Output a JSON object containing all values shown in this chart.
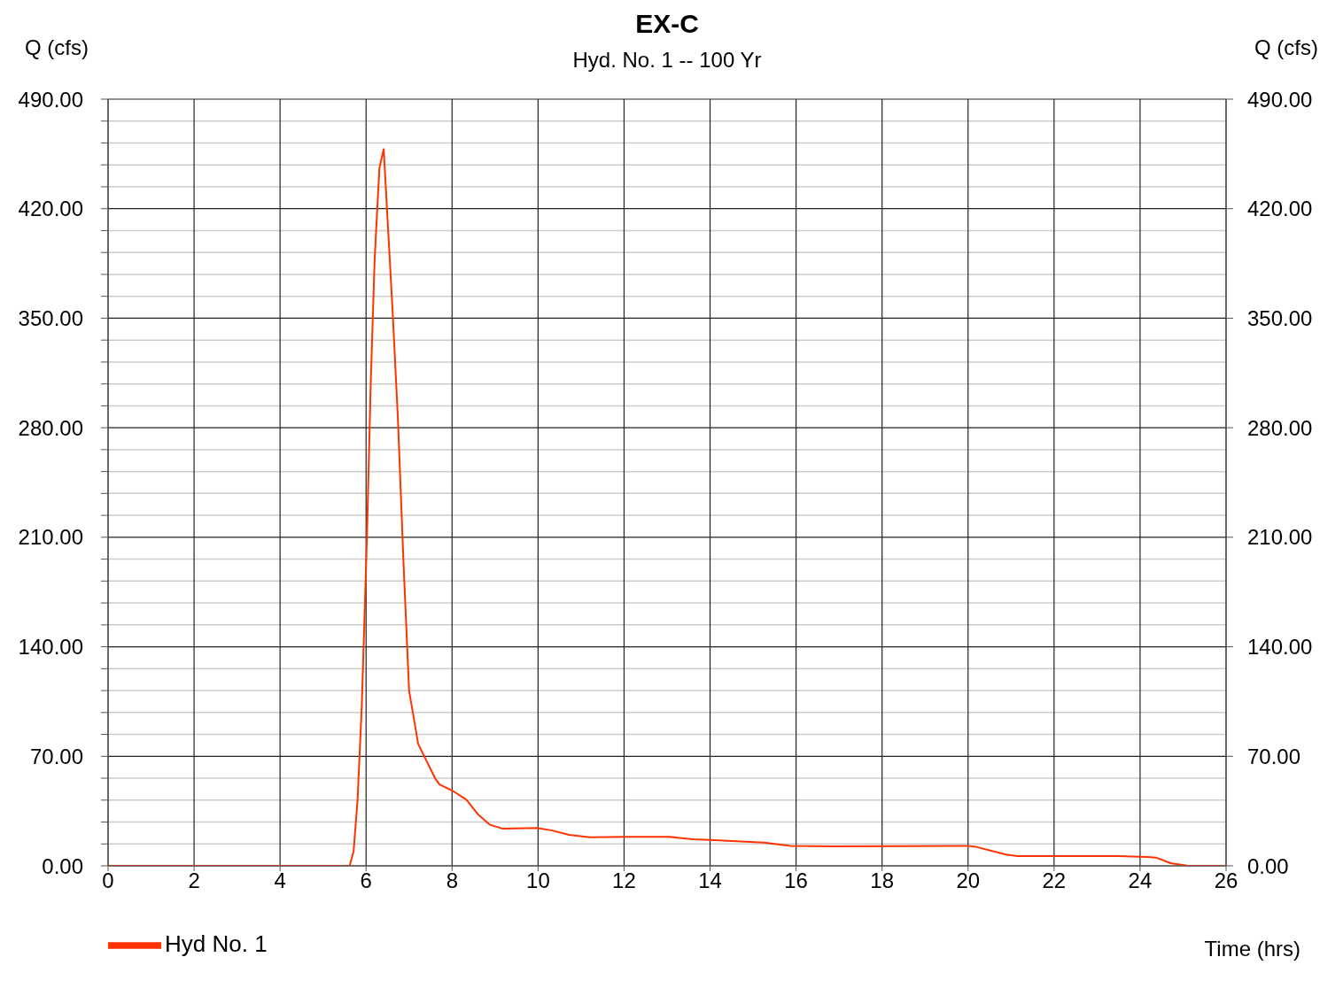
{
  "chart_data": {
    "type": "line",
    "title": "EX-C",
    "subtitle": "Hyd. No. 1 -- 100 Yr",
    "xlabel": "Time (hrs)",
    "ylabel": "Q (cfs)",
    "y2label": "Q (cfs)",
    "x": [
      0,
      5.62,
      5.71,
      5.8,
      5.9,
      6.02,
      6.11,
      6.2,
      6.31,
      6.41,
      6.51,
      6.62,
      6.74,
      6.87,
      7.0,
      7.1,
      7.21,
      7.61,
      7.71,
      8.02,
      8.33,
      8.6,
      8.87,
      9.18,
      9.97,
      10.31,
      10.72,
      11.2,
      12.03,
      13.06,
      13.6,
      14.0,
      15.25,
      15.87,
      16.83,
      19.98,
      20.19,
      20.88,
      21.15,
      23.48,
      24.17,
      24.37,
      24.71,
      25.12,
      26
    ],
    "series": [
      {
        "name": "Hyd No. 1",
        "color": "#ff3300",
        "values": [
          0,
          0,
          9.4,
          41,
          102,
          210,
          310,
          388,
          446,
          458,
          408,
          353,
          286,
          194,
          112,
          96,
          78,
          55.7,
          52,
          47.8,
          42.4,
          33,
          26.4,
          23.7,
          24.2,
          22.7,
          19.8,
          18.2,
          18.5,
          18.5,
          17,
          16.5,
          14.9,
          12.7,
          12.5,
          12.8,
          12.1,
          7.2,
          6.2,
          6.2,
          5.7,
          5.3,
          1.7,
          0,
          0
        ]
      }
    ],
    "xlim": [
      0,
      26
    ],
    "xticks": [
      0,
      2,
      4,
      6,
      8,
      10,
      12,
      14,
      16,
      18,
      20,
      22,
      24,
      26
    ],
    "ylim": [
      0,
      490
    ],
    "yticks": [
      {
        "value": 0,
        "label": "0.00"
      },
      {
        "value": 14,
        "label": null
      },
      {
        "value": 28,
        "label": null
      },
      {
        "value": 42,
        "label": null
      },
      {
        "value": 56,
        "label": null
      },
      {
        "value": 70,
        "label": "70.00"
      },
      {
        "value": 84,
        "label": null
      },
      {
        "value": 98,
        "label": null
      },
      {
        "value": 112,
        "label": null
      },
      {
        "value": 126,
        "label": null
      },
      {
        "value": 140,
        "label": "140.00"
      },
      {
        "value": 154,
        "label": null
      },
      {
        "value": 168,
        "label": null
      },
      {
        "value": 182,
        "label": null
      },
      {
        "value": 196,
        "label": null
      },
      {
        "value": 210,
        "label": "210.00"
      },
      {
        "value": 224,
        "label": null
      },
      {
        "value": 238,
        "label": null
      },
      {
        "value": 252,
        "label": null
      },
      {
        "value": 266,
        "label": null
      },
      {
        "value": 280,
        "label": "280.00"
      },
      {
        "value": 294,
        "label": null
      },
      {
        "value": 308,
        "label": null
      },
      {
        "value": 322,
        "label": null
      },
      {
        "value": 336,
        "label": null
      },
      {
        "value": 350,
        "label": "350.00"
      },
      {
        "value": 364,
        "label": null
      },
      {
        "value": 378,
        "label": null
      },
      {
        "value": 392,
        "label": null
      },
      {
        "value": 406,
        "label": null
      },
      {
        "value": 420,
        "label": "420.00"
      },
      {
        "value": 434,
        "label": null
      },
      {
        "value": 448,
        "label": null
      },
      {
        "value": 462,
        "label": null
      },
      {
        "value": 476,
        "label": null
      },
      {
        "value": 490,
        "label": "490.00"
      }
    ],
    "y2lim": [
      0,
      490
    ],
    "y2ticks": [
      {
        "value": 0,
        "label": "0.00"
      },
      {
        "value": 70,
        "label": "70.00"
      },
      {
        "value": 140,
        "label": "140.00"
      },
      {
        "value": 210,
        "label": "210.00"
      },
      {
        "value": 280,
        "label": "280.00"
      },
      {
        "value": 350,
        "label": "350.00"
      },
      {
        "value": 420,
        "label": "420.00"
      },
      {
        "value": 490,
        "label": "490.00"
      }
    ],
    "grid": true,
    "legend": "bottom left",
    "marker": "none",
    "line_style": "solid"
  }
}
